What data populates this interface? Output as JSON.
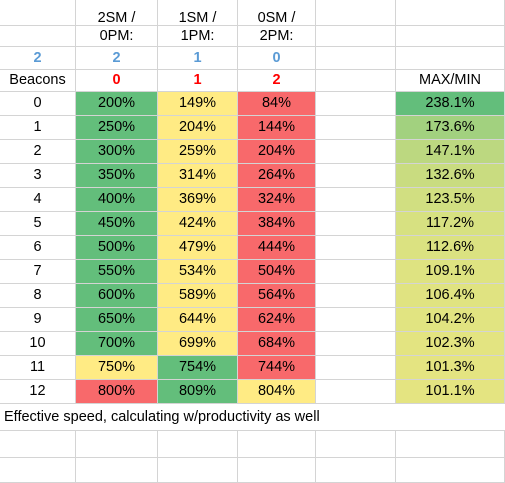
{
  "header": {
    "row1": [
      "",
      "2SM /",
      "1SM /",
      "0SM /",
      "",
      ""
    ],
    "row2": [
      "",
      "0PM:",
      "1PM:",
      "2PM:",
      "",
      ""
    ],
    "row3": [
      "2",
      "2",
      "1",
      "0",
      "",
      ""
    ],
    "row4": [
      "Beacons",
      "0",
      "1",
      "2",
      "",
      "MAX/MIN"
    ]
  },
  "rows": [
    [
      "0",
      "200%",
      "149%",
      "84%",
      "238.1%"
    ],
    [
      "1",
      "250%",
      "204%",
      "144%",
      "173.6%"
    ],
    [
      "2",
      "300%",
      "259%",
      "204%",
      "147.1%"
    ],
    [
      "3",
      "350%",
      "314%",
      "264%",
      "132.6%"
    ],
    [
      "4",
      "400%",
      "369%",
      "324%",
      "123.5%"
    ],
    [
      "5",
      "450%",
      "424%",
      "384%",
      "117.2%"
    ],
    [
      "6",
      "500%",
      "479%",
      "444%",
      "112.6%"
    ],
    [
      "7",
      "550%",
      "534%",
      "504%",
      "109.1%"
    ],
    [
      "8",
      "600%",
      "589%",
      "564%",
      "106.4%"
    ],
    [
      "9",
      "650%",
      "644%",
      "624%",
      "104.2%"
    ],
    [
      "10",
      "700%",
      "699%",
      "684%",
      "102.3%"
    ],
    [
      "11",
      "750%",
      "754%",
      "744%",
      "101.3%"
    ],
    [
      "12",
      "800%",
      "809%",
      "804%",
      "101.1%"
    ]
  ],
  "fills": [
    [
      "#63be7b",
      "#ffeb84",
      "#f8696b",
      "#63be7b"
    ],
    [
      "#63be7b",
      "#ffeb84",
      "#f8696b",
      "#a2d17f"
    ],
    [
      "#63be7b",
      "#ffeb84",
      "#f8696b",
      "#bcd880"
    ],
    [
      "#63be7b",
      "#ffeb84",
      "#f8696b",
      "#c9dc80"
    ],
    [
      "#63be7b",
      "#ffeb84",
      "#f8696b",
      "#d1df81"
    ],
    [
      "#63be7b",
      "#ffeb84",
      "#f8696b",
      "#d7e181"
    ],
    [
      "#63be7b",
      "#ffeb84",
      "#f8696b",
      "#dbe281"
    ],
    [
      "#63be7b",
      "#ffeb84",
      "#f8696b",
      "#dee381"
    ],
    [
      "#63be7b",
      "#ffeb84",
      "#f8696b",
      "#e0e381"
    ],
    [
      "#63be7b",
      "#ffeb84",
      "#f8696b",
      "#e1e481"
    ],
    [
      "#63be7b",
      "#ffeb84",
      "#f8696b",
      "#e3e481"
    ],
    [
      "#ffeb84",
      "#63be7b",
      "#f8696b",
      "#e4e481"
    ],
    [
      "#f8696b",
      "#63be7b",
      "#ffeb84",
      "#e4e481"
    ]
  ],
  "colors": {
    "blue_text": "#5b9bd5",
    "red_text": "#ff0000",
    "gridline": "#d4d4d4"
  },
  "footer": {
    "note": "Effective speed, calculating w/productivity as well"
  }
}
